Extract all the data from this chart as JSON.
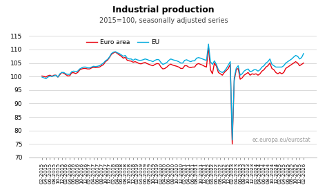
{
  "title": "Industrial production",
  "subtitle": "2015=100, seasonally adjusted series",
  "ylabel": "",
  "ylim": [
    70,
    115
  ],
  "yticks": [
    70,
    75,
    80,
    85,
    90,
    95,
    100,
    105,
    110,
    115
  ],
  "legend_labels": [
    "Euro area",
    "EU"
  ],
  "line_colors": [
    "#e8000d",
    "#00aadd"
  ],
  "watermark": "ec.europa.eu/eurostat",
  "euro_area": [
    100.2,
    100.0,
    99.8,
    100.3,
    100.5,
    100.1,
    100.5,
    100.5,
    99.8,
    100.7,
    101.5,
    101.2,
    100.7,
    100.2,
    100.3,
    101.4,
    101.4,
    101.1,
    101.5,
    102.4,
    102.8,
    103.0,
    103.0,
    102.8,
    102.8,
    103.2,
    103.4,
    103.3,
    103.4,
    103.5,
    104.0,
    104.4,
    105.5,
    106.0,
    107.0,
    108.2,
    108.7,
    109.1,
    108.5,
    108.0,
    107.5,
    106.8,
    107.1,
    106.0,
    105.8,
    105.7,
    105.3,
    105.5,
    105.2,
    104.8,
    104.7,
    105.0,
    105.2,
    104.8,
    104.5,
    104.2,
    104.0,
    104.5,
    104.8,
    104.7,
    103.5,
    102.8,
    103.0,
    103.5,
    104.2,
    104.6,
    104.2,
    104.0,
    103.8,
    103.5,
    103.0,
    103.0,
    104.0,
    104.0,
    103.5,
    103.3,
    103.5,
    103.5,
    104.5,
    104.8,
    104.5,
    104.2,
    103.8,
    103.5,
    111.0,
    102.5,
    101.0,
    105.0,
    103.8,
    101.5,
    101.0,
    100.5,
    101.5,
    102.2,
    103.0,
    104.5,
    75.0,
    98.5,
    102.5,
    103.0,
    99.0,
    99.5,
    100.5,
    101.0,
    101.5,
    100.5,
    101.0,
    100.8,
    101.0,
    100.5,
    101.0,
    102.0,
    102.5,
    103.5,
    104.0,
    105.0,
    103.0,
    102.5,
    101.5,
    101.0,
    101.5,
    101.0,
    101.5,
    103.0,
    103.5,
    104.0,
    104.5,
    105.0,
    105.5,
    105.0,
    104.0,
    104.5,
    105.0
  ],
  "eu": [
    99.8,
    99.5,
    99.2,
    99.8,
    100.2,
    100.0,
    100.3,
    100.5,
    99.8,
    101.0,
    101.5,
    101.5,
    101.0,
    100.8,
    100.8,
    101.8,
    102.0,
    101.8,
    102.0,
    102.8,
    103.2,
    103.5,
    103.5,
    103.2,
    103.2,
    103.5,
    103.8,
    103.7,
    103.8,
    104.0,
    104.5,
    105.0,
    105.8,
    106.3,
    107.2,
    108.5,
    109.0,
    109.2,
    108.8,
    108.5,
    108.0,
    107.5,
    107.8,
    106.8,
    106.5,
    106.5,
    106.0,
    106.5,
    106.2,
    106.0,
    106.0,
    106.2,
    106.5,
    106.3,
    106.0,
    105.8,
    105.5,
    106.0,
    106.3,
    106.2,
    105.2,
    104.5,
    104.8,
    105.2,
    106.0,
    106.5,
    106.2,
    106.0,
    105.8,
    105.5,
    105.0,
    105.0,
    106.0,
    106.2,
    105.8,
    105.5,
    105.8,
    105.8,
    106.8,
    107.0,
    106.8,
    106.5,
    106.2,
    106.0,
    112.0,
    105.5,
    104.5,
    105.8,
    104.5,
    102.5,
    101.8,
    101.5,
    102.0,
    103.0,
    104.2,
    105.5,
    76.5,
    99.5,
    103.0,
    104.0,
    100.5,
    101.0,
    102.0,
    102.5,
    102.8,
    101.8,
    102.0,
    102.5,
    102.5,
    102.0,
    102.5,
    103.5,
    104.0,
    105.0,
    105.5,
    106.5,
    104.5,
    104.0,
    103.5,
    103.5,
    103.5,
    103.5,
    104.0,
    105.0,
    105.5,
    106.0,
    106.5,
    107.2,
    107.8,
    107.5,
    106.5,
    107.0,
    108.5
  ]
}
